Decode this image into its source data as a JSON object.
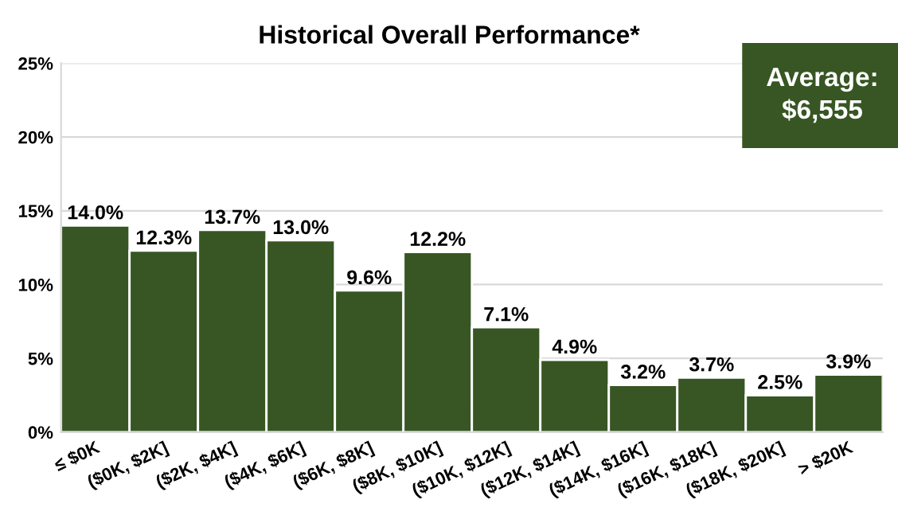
{
  "chart_data": {
    "type": "bar",
    "title": "Historical Overall Performance*",
    "categories": [
      "≤ $0K",
      "($0K, $2K]",
      "($2K, $4K]",
      "($4K, $6K]",
      "($6K, $8K]",
      "($8K, $10K]",
      "($10K, $12K]",
      "($12K, $14K]",
      "($14K, $16K]",
      "($16K, $18K]",
      "($18K, $20K]",
      "> $20K"
    ],
    "values": [
      14.0,
      12.3,
      13.7,
      13.0,
      9.6,
      12.2,
      7.1,
      4.9,
      3.2,
      3.7,
      2.5,
      3.9
    ],
    "value_labels": [
      "14.0%",
      "12.3%",
      "13.7%",
      "13.0%",
      "9.6%",
      "12.2%",
      "7.1%",
      "4.9%",
      "3.2%",
      "3.7%",
      "2.5%",
      "3.9%"
    ],
    "color": "#375623",
    "ylim": [
      0,
      25
    ],
    "yticks": [
      {
        "value": 0,
        "label": "0%"
      },
      {
        "value": 5,
        "label": "5%"
      },
      {
        "value": 10,
        "label": "10%"
      },
      {
        "value": 15,
        "label": "15%"
      },
      {
        "value": 20,
        "label": "20%"
      },
      {
        "value": 25,
        "label": "25%"
      }
    ],
    "grid": "y",
    "annotations": [
      "Average:\n$6,555"
    ]
  }
}
